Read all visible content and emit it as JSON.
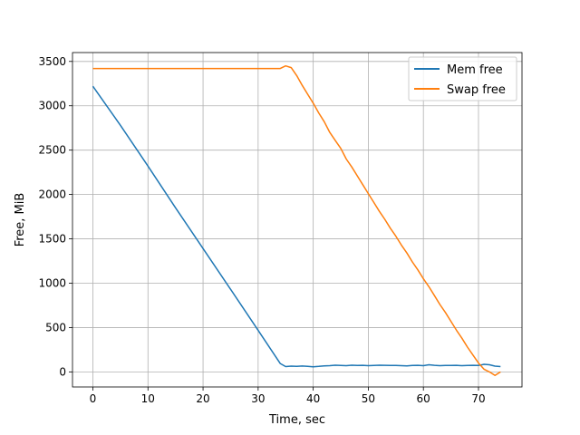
{
  "chart_data": {
    "type": "line",
    "xlabel": "Time, sec",
    "ylabel": "Free, MiB",
    "xlim": [
      -3.7,
      77.9
    ],
    "ylim": [
      -170,
      3600
    ],
    "xticks": [
      0,
      10,
      20,
      30,
      40,
      50,
      60,
      70
    ],
    "yticks": [
      0,
      500,
      1000,
      1500,
      2000,
      2500,
      3000,
      3500
    ],
    "grid": true,
    "legend": "top-right",
    "series": [
      {
        "name": "Mem free",
        "color": "#1f77b4",
        "x": [
          0,
          5,
          10,
          15,
          20,
          25,
          30,
          34,
          35,
          36,
          37,
          38,
          39,
          40,
          41,
          42,
          43,
          44,
          45,
          46,
          47,
          48,
          49,
          50,
          51,
          52,
          53,
          54,
          55,
          56,
          57,
          58,
          59,
          60,
          61,
          62,
          63,
          64,
          65,
          66,
          67,
          68,
          69,
          70,
          71,
          72,
          73,
          74
        ],
        "y": [
          3220,
          2780,
          2320,
          1850,
          1390,
          930,
          470,
          95,
          60,
          65,
          62,
          66,
          63,
          58,
          62,
          68,
          70,
          75,
          72,
          70,
          75,
          73,
          74,
          70,
          72,
          75,
          74,
          72,
          73,
          70,
          68,
          72,
          74,
          70,
          80,
          74,
          70,
          73,
          72,
          74,
          70,
          72,
          74,
          72,
          85,
          80,
          65,
          60
        ]
      },
      {
        "name": "Swap free",
        "color": "#ff7f0e",
        "x": [
          0,
          5,
          10,
          15,
          20,
          25,
          30,
          34,
          35,
          36,
          37,
          38,
          39,
          40,
          41,
          42,
          43,
          44,
          45,
          46,
          47,
          48,
          49,
          50,
          51,
          52,
          53,
          54,
          55,
          56,
          57,
          58,
          59,
          60,
          61,
          62,
          63,
          64,
          65,
          66,
          67,
          68,
          69,
          70,
          71,
          72,
          73,
          74
        ],
        "y": [
          3420,
          3420,
          3420,
          3420,
          3420,
          3420,
          3420,
          3420,
          3450,
          3430,
          3340,
          3230,
          3130,
          3030,
          2920,
          2820,
          2700,
          2610,
          2520,
          2400,
          2310,
          2210,
          2110,
          2010,
          1910,
          1810,
          1720,
          1620,
          1530,
          1430,
          1340,
          1240,
          1150,
          1050,
          960,
          860,
          760,
          670,
          570,
          470,
          380,
          280,
          190,
          100,
          30,
          0,
          -40,
          0
        ]
      }
    ]
  }
}
